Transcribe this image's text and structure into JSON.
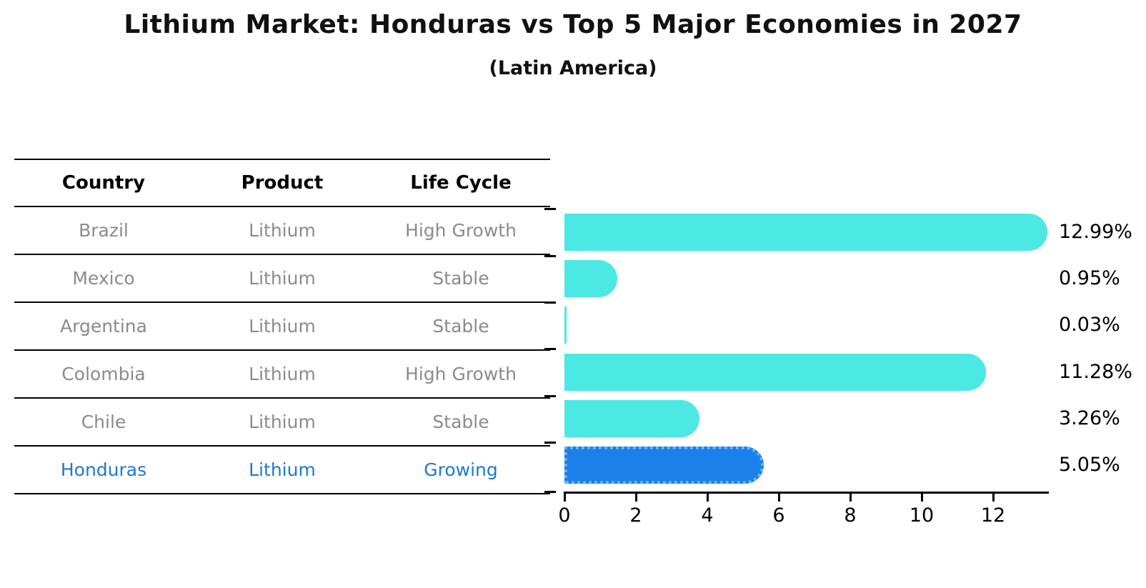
{
  "title": "Lithium Market: Honduras vs Top 5 Major Economies in 2027",
  "subtitle": "(Latin America)",
  "table": {
    "headers": {
      "country": "Country",
      "product": "Product",
      "life_cycle": "Life Cycle"
    },
    "rows": [
      {
        "country": "Brazil",
        "product": "Lithium",
        "life_cycle": "High Growth",
        "highlighted": false
      },
      {
        "country": "Mexico",
        "product": "Lithium",
        "life_cycle": "Stable",
        "highlighted": false
      },
      {
        "country": "Argentina",
        "product": "Lithium",
        "life_cycle": "Stable",
        "highlighted": false
      },
      {
        "country": "Colombia",
        "product": "Lithium",
        "life_cycle": "High Growth",
        "highlighted": false
      },
      {
        "country": "Chile",
        "product": "Lithium",
        "life_cycle": "Stable",
        "highlighted": false
      },
      {
        "country": "Honduras",
        "product": "Lithium",
        "life_cycle": "Growing",
        "highlighted": true
      }
    ]
  },
  "chart_data": {
    "type": "bar",
    "orientation": "horizontal",
    "title": "Lithium Market: Honduras vs Top 5 Major Economies in 2027",
    "subtitle": "(Latin America)",
    "categories": [
      "Brazil",
      "Mexico",
      "Argentina",
      "Colombia",
      "Chile",
      "Honduras"
    ],
    "values": [
      12.99,
      0.95,
      0.03,
      11.28,
      3.26,
      5.05
    ],
    "value_labels": [
      "12.99%",
      "0.95%",
      "0.03%",
      "11.28%",
      "3.26%",
      "5.05%"
    ],
    "x_ticks": [
      "0",
      "2",
      "4",
      "6",
      "8",
      "10",
      "12"
    ],
    "xlim": [
      0,
      13.5
    ],
    "grid": false,
    "legend": false,
    "highlight_index": 5,
    "bar_color": "#4BE8E4",
    "highlight_bar_color": "#1C80EA",
    "highlight_edge_color": "#74B5F4",
    "highlight_text_color": "#1E78D2",
    "table_text_color": "#8B8B8B"
  }
}
